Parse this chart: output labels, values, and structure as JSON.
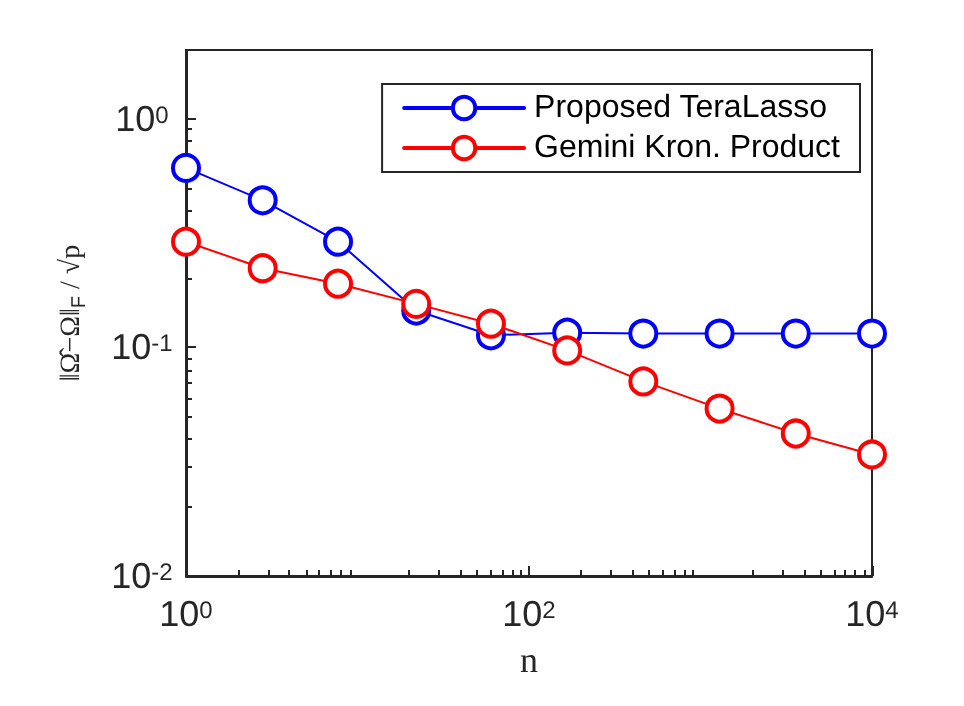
{
  "chart_data": {
    "type": "line",
    "xlabel": "n",
    "ylabel": "‖Ω̂−Ω‖$_{F}$ / √p",
    "x": [
      1,
      2.8,
      7.7,
      22,
      60,
      167,
      464,
      1292,
      3594,
      10000
    ],
    "series": [
      {
        "name": "Proposed TeraLasso",
        "color": "#0000ff",
        "values": [
          0.61,
          0.44,
          0.29,
          0.145,
          0.113,
          0.116,
          0.115,
          0.115,
          0.115,
          0.115
        ]
      },
      {
        "name": "Gemini Kron. Product",
        "color": "#ff0000",
        "values": [
          0.29,
          0.222,
          0.19,
          0.155,
          0.127,
          0.097,
          0.071,
          0.054,
          0.042,
          0.034
        ]
      }
    ],
    "log": "xy",
    "xlim": [
      1,
      10000
    ],
    "ylim": [
      0.01,
      2
    ],
    "xticks": [
      {
        "value": 1,
        "label": "10$^{0}$"
      },
      {
        "value": 100,
        "label": "10$^{2}$"
      },
      {
        "value": 10000,
        "label": "10$^{4}$"
      }
    ],
    "yticks": [
      {
        "value": 0.01,
        "label": "10$^{-2}$"
      },
      {
        "value": 0.1,
        "label": "10$^{-1}$"
      },
      {
        "value": 1,
        "label": "10$^{0}$"
      }
    ],
    "grid": false,
    "legend": "top right",
    "marker": "circle",
    "line_style": "solid"
  }
}
